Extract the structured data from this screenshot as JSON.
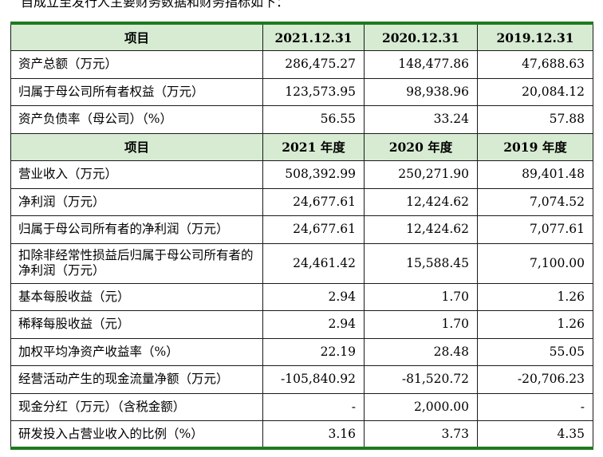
{
  "intro_fragment": "自成立至发行人主要财务数据和财务指标如下：",
  "headers_balance": [
    "项目",
    "2021.12.31",
    "2020.12.31",
    "2019.12.31"
  ],
  "rows_balance": [
    {
      "label": "资产总额（万元）",
      "v2021": "286,475.27",
      "v2020": "148,477.86",
      "v2019": "47,688.63"
    },
    {
      "label": "归属于母公司所有者权益（万元）",
      "v2021": "123,573.95",
      "v2020": "98,938.96",
      "v2019": "20,084.12"
    },
    {
      "label": "资产负债率（母公司）（%）",
      "v2021": "56.55",
      "v2020": "33.24",
      "v2019": "57.88"
    }
  ],
  "headers_income": [
    "项目",
    "2021 年度",
    "2020 年度",
    "2019 年度"
  ],
  "rows_income": [
    {
      "label": "营业收入（万元）",
      "v2021": "508,392.99",
      "v2020": "250,271.90",
      "v2019": "89,401.48"
    },
    {
      "label": "净利润（万元）",
      "v2021": "24,677.61",
      "v2020": "12,424.62",
      "v2019": "7,074.52"
    },
    {
      "label": "归属于母公司所有者的净利润（万元）",
      "v2021": "24,677.61",
      "v2020": "12,424.62",
      "v2019": "7,077.61"
    },
    {
      "label": "扣除非经常性损益后归属于母公司所有者的净利润（万元）",
      "v2021": "24,461.42",
      "v2020": "15,588.45",
      "v2019": "7,100.00"
    },
    {
      "label": "基本每股收益（元）",
      "v2021": "2.94",
      "v2020": "1.70",
      "v2019": "1.26"
    },
    {
      "label": "稀释每股收益（元）",
      "v2021": "2.94",
      "v2020": "1.70",
      "v2019": "1.26"
    },
    {
      "label": "加权平均净资产收益率（%）",
      "v2021": "22.19",
      "v2020": "28.48",
      "v2019": "55.05"
    },
    {
      "label": "经营活动产生的现金流量净额（万元）",
      "v2021": "-105,840.92",
      "v2020": "-81,520.72",
      "v2019": "-20,706.23"
    },
    {
      "label": "现金分红（万元）（含税金额）",
      "v2021": "-",
      "v2020": "2,000.00",
      "v2019": "-"
    },
    {
      "label": "研发投入占营业收入的比例（%）",
      "v2021": "3.16",
      "v2020": "3.73",
      "v2019": "4.35"
    }
  ],
  "colors": {
    "header_bg": "#d6ebd2",
    "rule": "#1e7a1e"
  }
}
